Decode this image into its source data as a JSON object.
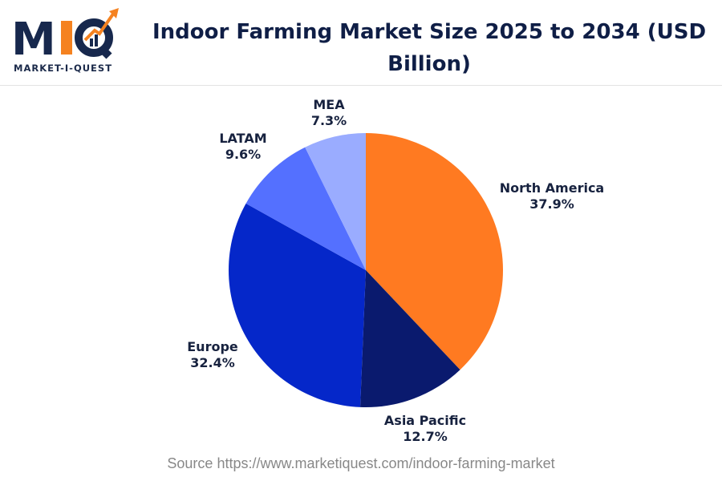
{
  "logo": {
    "text": "MIQ",
    "subtitle": "MARKET-I-QUEST"
  },
  "chart_data": {
    "type": "pie",
    "title": "Indoor Farming Market Size 2025 to 2034 (USD Billion)",
    "categories": [
      "North America",
      "Asia Pacific",
      "Europe",
      "LATAM",
      "MEA"
    ],
    "values": [
      37.9,
      12.7,
      32.4,
      9.6,
      7.3
    ],
    "labels": [
      "37.9%",
      "12.7%",
      "32.4%",
      "9.6%",
      "7.3%"
    ],
    "colors": [
      "#FF7A21",
      "#0A1A6E",
      "#0527C9",
      "#5470FF",
      "#9AACFF"
    ],
    "start": "12 o'clock, clockwise"
  },
  "source": "Source https://www.marketiquest.com/indoor-farming-market"
}
